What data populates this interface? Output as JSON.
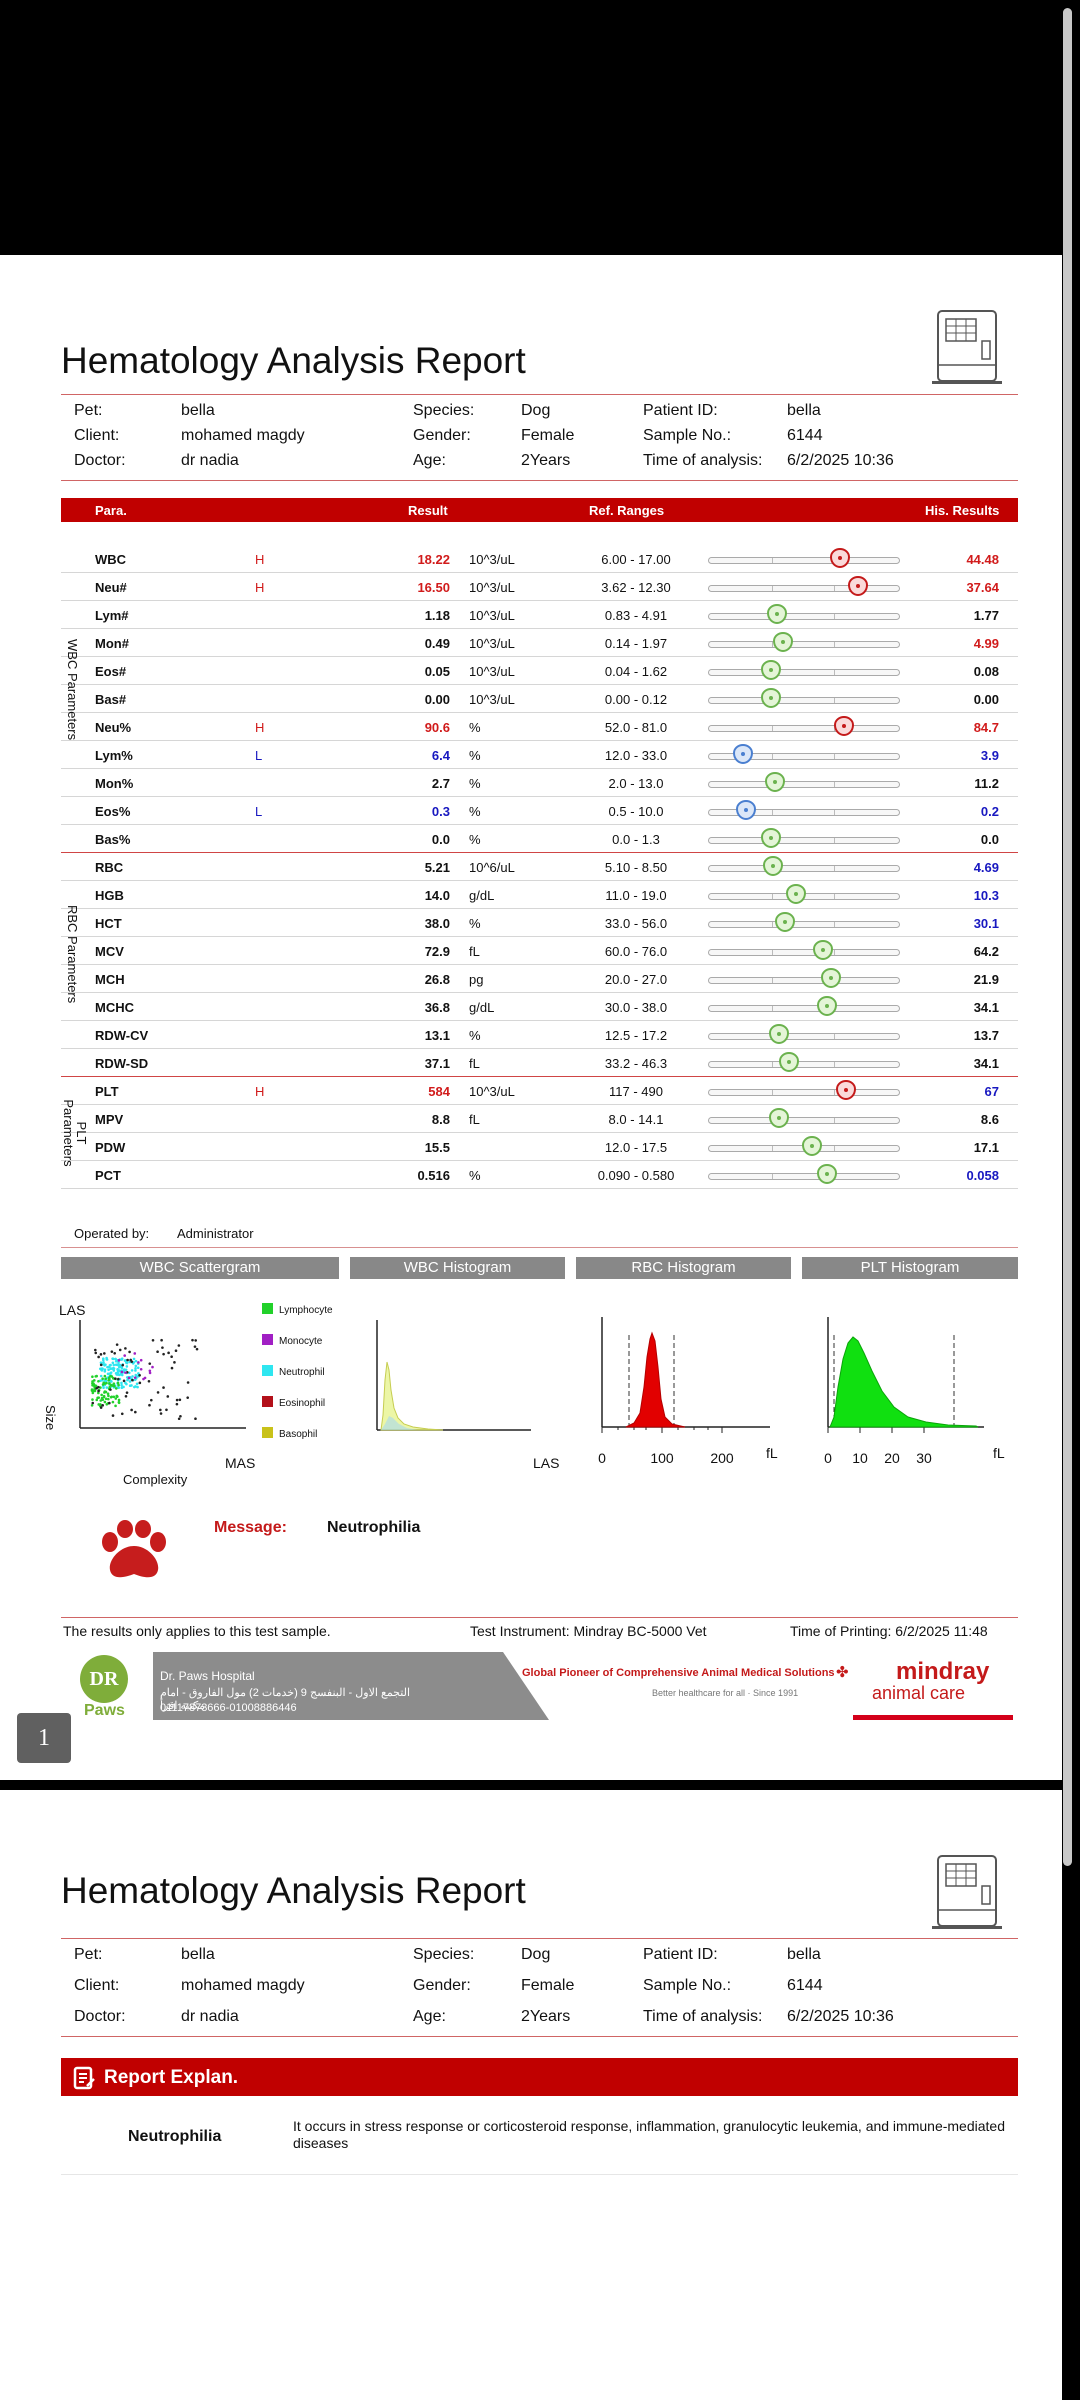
{
  "report": {
    "title": "Hematology Analysis Report",
    "info_rows": [
      {
        "k1": "Pet:",
        "v1": "bella",
        "k2": "Species:",
        "v2": "Dog",
        "k3": "Patient ID:",
        "v3": "bella"
      },
      {
        "k1": "Client:",
        "v1": "mohamed magdy",
        "k2": "Gender:",
        "v2": "Female",
        "k3": "Sample No.:",
        "v3": "6144"
      },
      {
        "k1": "Doctor:",
        "v1": "dr nadia",
        "k2": "Age:",
        "v2": "2Years",
        "k3": "Time of analysis:",
        "v3": "6/2/2025 10:36"
      }
    ],
    "table_headers": {
      "para": "Para.",
      "result": "Result",
      "ref": "Ref. Ranges",
      "his": "His. Results"
    },
    "groups": [
      {
        "label": "WBC Parameters",
        "rows": [
          {
            "name": "WBC",
            "flag": "H",
            "result": "18.22",
            "unit": "10^3/uL",
            "ref": "6.00 - 17.00",
            "his": "44.48",
            "pos": 0.69,
            "state": "h",
            "res_color": "red",
            "his_color": "red"
          },
          {
            "name": "Neu#",
            "flag": "H",
            "result": "16.50",
            "unit": "10^3/uL",
            "ref": "3.62 - 12.30",
            "his": "37.64",
            "pos": 0.78,
            "state": "h",
            "res_color": "red",
            "his_color": "red"
          },
          {
            "name": "Lym#",
            "flag": "",
            "result": "1.18",
            "unit": "10^3/uL",
            "ref": "0.83 - 4.91",
            "his": "1.77",
            "pos": 0.36,
            "state": "n",
            "res_color": "",
            "his_color": ""
          },
          {
            "name": "Mon#",
            "flag": "",
            "result": "0.49",
            "unit": "10^3/uL",
            "ref": "0.14 - 1.97",
            "his": "4.99",
            "pos": 0.39,
            "state": "n",
            "res_color": "",
            "his_color": "red"
          },
          {
            "name": "Eos#",
            "flag": "",
            "result": "0.05",
            "unit": "10^3/uL",
            "ref": "0.04 - 1.62",
            "his": "0.08",
            "pos": 0.33,
            "state": "n",
            "res_color": "",
            "his_color": ""
          },
          {
            "name": "Bas#",
            "flag": "",
            "result": "0.00",
            "unit": "10^3/uL",
            "ref": "0.00 - 0.12",
            "his": "0.00",
            "pos": 0.33,
            "state": "n",
            "res_color": "",
            "his_color": ""
          },
          {
            "name": "Neu%",
            "flag": "H",
            "result": "90.6",
            "unit": "%",
            "ref": "52.0 - 81.0",
            "his": "84.7",
            "pos": 0.71,
            "state": "h",
            "res_color": "red",
            "his_color": "red"
          },
          {
            "name": "Lym%",
            "flag": "L",
            "result": "6.4",
            "unit": "%",
            "ref": "12.0 - 33.0",
            "his": "3.9",
            "pos": 0.18,
            "state": "l",
            "res_color": "blue",
            "his_color": "blue"
          },
          {
            "name": "Mon%",
            "flag": "",
            "result": "2.7",
            "unit": "%",
            "ref": "2.0 - 13.0",
            "his": "11.2",
            "pos": 0.35,
            "state": "n",
            "res_color": "",
            "his_color": ""
          },
          {
            "name": "Eos%",
            "flag": "L",
            "result": "0.3",
            "unit": "%",
            "ref": "0.5 - 10.0",
            "his": "0.2",
            "pos": 0.2,
            "state": "l",
            "res_color": "blue",
            "his_color": "blue"
          },
          {
            "name": "Bas%",
            "flag": "",
            "result": "0.0",
            "unit": "%",
            "ref": "0.0 - 1.3",
            "his": "0.0",
            "pos": 0.33,
            "state": "n",
            "res_color": "",
            "his_color": ""
          }
        ]
      },
      {
        "label": "RBC Parameters",
        "rows": [
          {
            "name": "RBC",
            "flag": "",
            "result": "5.21",
            "unit": "10^6/uL",
            "ref": "5.10 - 8.50",
            "his": "4.69",
            "pos": 0.34,
            "state": "n",
            "res_color": "",
            "his_color": "blue"
          },
          {
            "name": "HGB",
            "flag": "",
            "result": "14.0",
            "unit": "g/dL",
            "ref": "11.0 - 19.0",
            "his": "10.3",
            "pos": 0.46,
            "state": "n",
            "res_color": "",
            "his_color": "blue"
          },
          {
            "name": "HCT",
            "flag": "",
            "result": "38.0",
            "unit": "%",
            "ref": "33.0 - 56.0",
            "his": "30.1",
            "pos": 0.4,
            "state": "n",
            "res_color": "",
            "his_color": "blue"
          },
          {
            "name": "MCV",
            "flag": "",
            "result": "72.9",
            "unit": "fL",
            "ref": "60.0 - 76.0",
            "his": "64.2",
            "pos": 0.6,
            "state": "n",
            "res_color": "",
            "his_color": ""
          },
          {
            "name": "MCH",
            "flag": "",
            "result": "26.8",
            "unit": "pg",
            "ref": "20.0 - 27.0",
            "his": "21.9",
            "pos": 0.64,
            "state": "n",
            "res_color": "",
            "his_color": ""
          },
          {
            "name": "MCHC",
            "flag": "",
            "result": "36.8",
            "unit": "g/dL",
            "ref": "30.0 - 38.0",
            "his": "34.1",
            "pos": 0.62,
            "state": "n",
            "res_color": "",
            "his_color": ""
          },
          {
            "name": "RDW-CV",
            "flag": "",
            "result": "13.1",
            "unit": "%",
            "ref": "12.5 - 17.2",
            "his": "13.7",
            "pos": 0.37,
            "state": "n",
            "res_color": "",
            "his_color": ""
          },
          {
            "name": "RDW-SD",
            "flag": "",
            "result": "37.1",
            "unit": "fL",
            "ref": "33.2 - 46.3",
            "his": "34.1",
            "pos": 0.42,
            "state": "n",
            "res_color": "",
            "his_color": ""
          }
        ]
      },
      {
        "label": "PLT Parameters",
        "rows": [
          {
            "name": "PLT",
            "flag": "H",
            "result": "584",
            "unit": "10^3/uL",
            "ref": "117 - 490",
            "his": "67",
            "pos": 0.72,
            "state": "h",
            "res_color": "red",
            "his_color": "blue"
          },
          {
            "name": "MPV",
            "flag": "",
            "result": "8.8",
            "unit": "fL",
            "ref": "8.0 - 14.1",
            "his": "8.6",
            "pos": 0.37,
            "state": "n",
            "res_color": "",
            "his_color": ""
          },
          {
            "name": "PDW",
            "flag": "",
            "result": "15.5",
            "unit": "",
            "ref": "12.0 - 17.5",
            "his": "17.1",
            "pos": 0.54,
            "state": "n",
            "res_color": "",
            "his_color": ""
          },
          {
            "name": "PCT",
            "flag": "",
            "result": "0.516",
            "unit": "%",
            "ref": "0.090 - 0.580",
            "his": "0.058",
            "pos": 0.62,
            "state": "n",
            "res_color": "",
            "his_color": "blue"
          }
        ]
      }
    ],
    "operated_label": "Operated by:",
    "operated_value": "Administrator",
    "graph_tabs": [
      "WBC Scattergram",
      "WBC Histogram",
      "RBC Histogram",
      "PLT Histogram"
    ],
    "scatter": {
      "y_axis": "LAS",
      "x_axis": "Complexity",
      "size_label": "Size",
      "mas": "MAS",
      "legend": [
        "Lymphocyte",
        "Monocyte",
        "Neutrophil",
        "Eosinophil",
        "Basophil"
      ],
      "legend_colors": [
        "#22d12a",
        "#a11fc4",
        "#2ee6f0",
        "#b3101a",
        "#c9c21a"
      ]
    },
    "wbc_hist_axis": "LAS",
    "rbc_hist": {
      "ticks": [
        "0",
        "100",
        "200"
      ],
      "unit": "fL"
    },
    "plt_hist": {
      "ticks": [
        "0",
        "10",
        "20",
        "30"
      ],
      "unit": "fL"
    },
    "message_label": "Message:",
    "message_value": "Neutrophilia",
    "disclaimer": "The results only applies to this test sample.",
    "instrument": "Test Instrument: Mindray BC-5000 Vet",
    "printing": "Time of Printing: 6/2/2025 11:48",
    "hospital_name": "Dr. Paws Hospital",
    "hospital_address": "التجمع الاول - البنفسج 9 (خدمات 2) مول الفاروق - امام مكتبه اقرأ",
    "hospital_phone": "01117873666-01008886446",
    "pioneer": "Global Pioneer of Comprehensive Animal Medical Solutions",
    "tagline": "Better healthcare for all  ·  Since 1991",
    "brand1": "mindray",
    "brand2": "animal care",
    "logo_dr": "DR",
    "logo_paws": "Paws",
    "page_no": "1"
  },
  "page2": {
    "title": "Hematology Analysis Report",
    "explan_label": "Report Explan.",
    "explan_term": "Neutrophilia",
    "explan_text": "It occurs in stress response or corticosteroid response, inflammation, granulocytic leukemia, and immune-mediated diseases"
  }
}
